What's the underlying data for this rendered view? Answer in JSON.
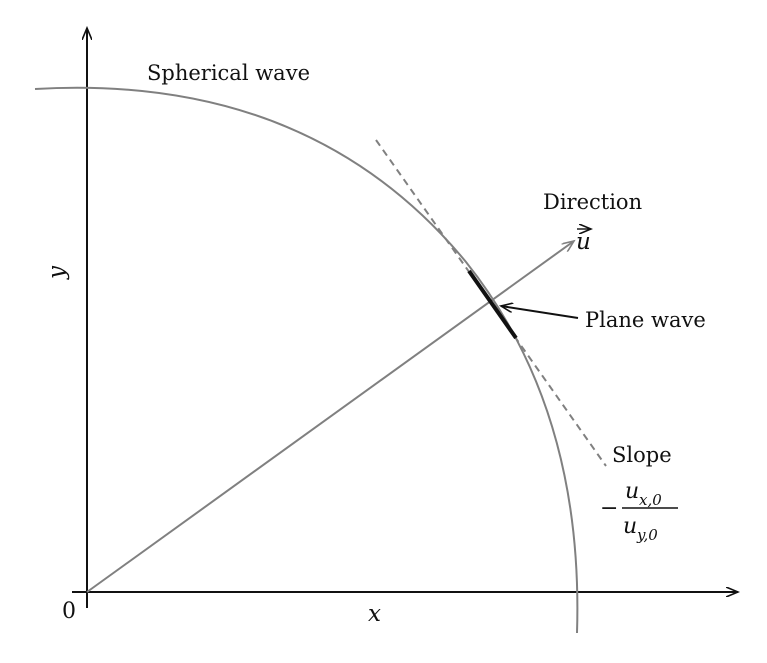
{
  "labels": {
    "spherical_wave": "Spherical wave",
    "direction": "Direction",
    "direction_vector": "u",
    "plane_wave": "Plane wave",
    "slope": "Slope",
    "slope_minus": "−",
    "slope_num_base": "u",
    "slope_num_sub": "x,0",
    "slope_den_base": "u",
    "slope_den_sub": "y,0",
    "origin": "0",
    "x_axis": "x",
    "y_axis": "y"
  },
  "colors": {
    "axis": "#111111",
    "curve": "#808080",
    "plane_wave": "#111111",
    "tangent": "#808080"
  }
}
